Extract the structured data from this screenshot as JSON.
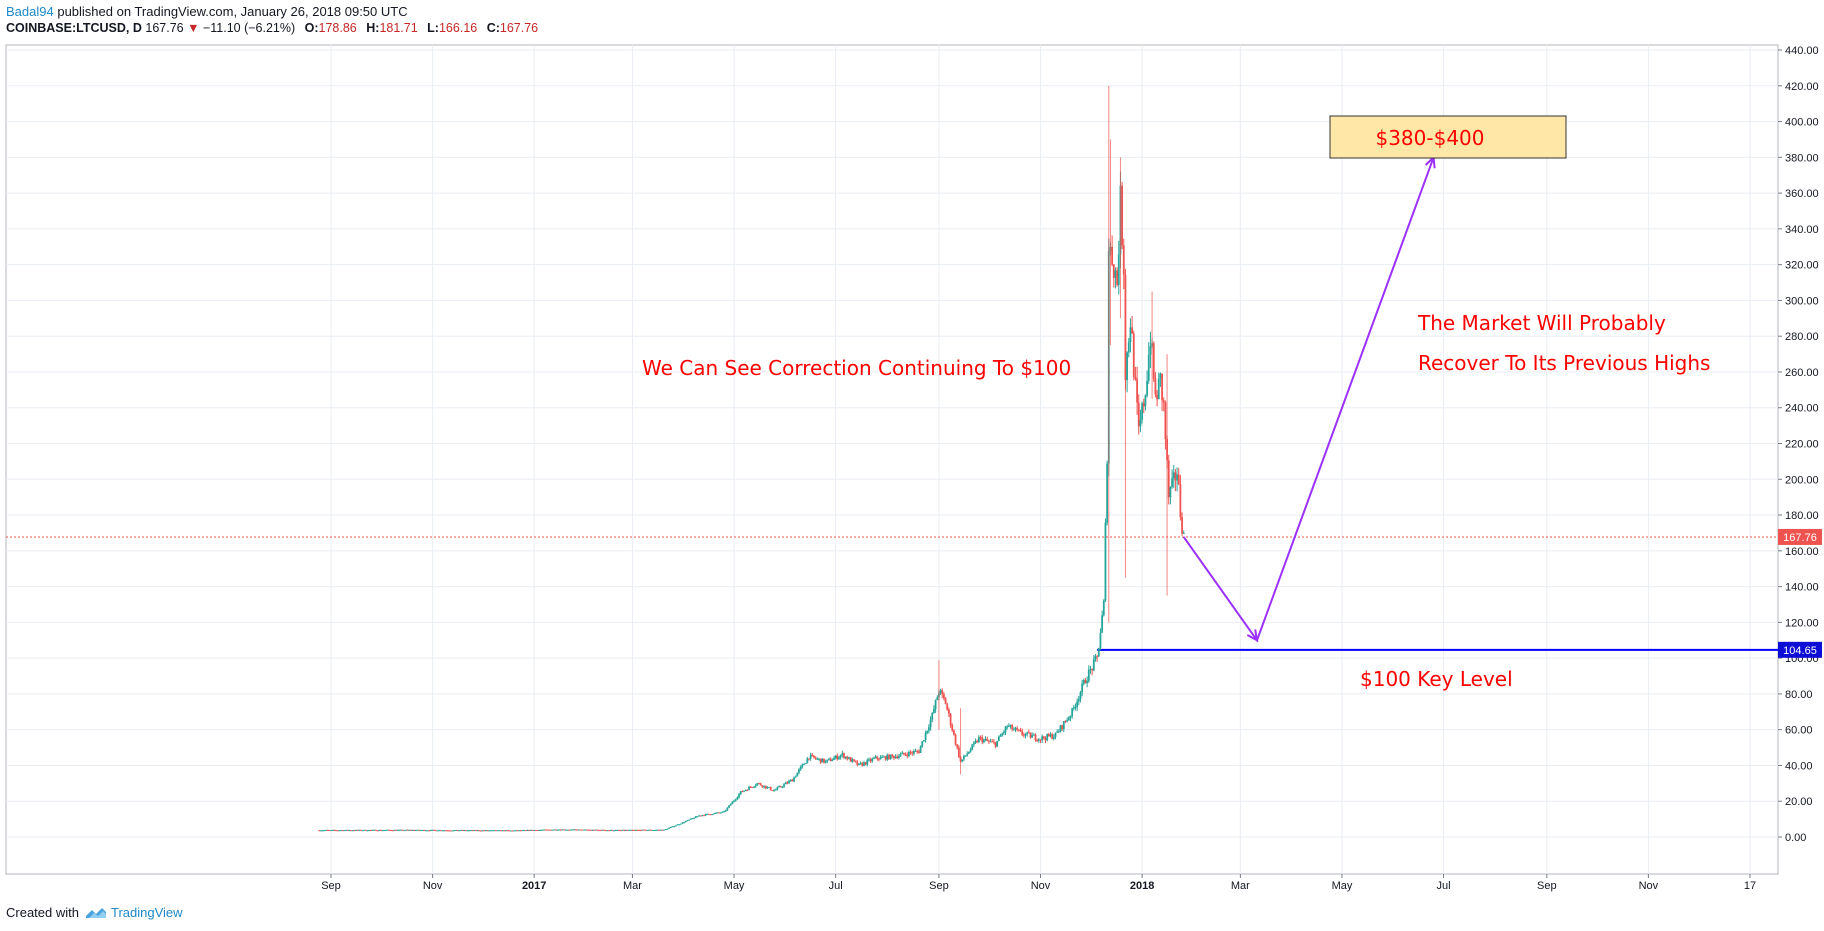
{
  "header": {
    "author": "Badal94",
    "published": "published on TradingView.com, January 26, 2018 09:50 UTC"
  },
  "symbol": {
    "name": "COINBASE:LTCUSD, D",
    "last": "167.76",
    "change": "−11.10 (−6.21%)",
    "open_label": "O:",
    "open": "178.86",
    "high_label": "H:",
    "high": "181.71",
    "low_label": "L:",
    "low": "166.16",
    "close_label": "C:",
    "close": "167.76"
  },
  "footer": {
    "created_with": "Created with",
    "brand": "TradingView"
  },
  "colors": {
    "up": "#26a69a",
    "down": "#ef5350",
    "grid": "#e9eef3",
    "key_level": "#0000ff",
    "arrow": "#9b30ff",
    "annotation": "#ff0000",
    "target_box": "#ffe7a8",
    "price_marker": "#ef5350"
  },
  "chart_data": {
    "type": "candlestick",
    "title": "",
    "ylim": [
      -20,
      440
    ],
    "y_ticks": [
      "440.00",
      "420.00",
      "400.00",
      "380.00",
      "360.00",
      "340.00",
      "320.00",
      "300.00",
      "280.00",
      "260.00",
      "240.00",
      "220.00",
      "200.00",
      "180.00",
      "160.00",
      "140.00",
      "120.00",
      "100.00",
      "80.00",
      "60.00",
      "40.00",
      "20.00",
      "0.00"
    ],
    "x_ticks": [
      {
        "date": "2016-09-01",
        "label": "Sep",
        "bold": false
      },
      {
        "date": "2016-11-01",
        "label": "Nov",
        "bold": false
      },
      {
        "date": "2017-01-01",
        "label": "2017",
        "bold": true
      },
      {
        "date": "2017-03-01",
        "label": "Mar",
        "bold": false
      },
      {
        "date": "2017-05-01",
        "label": "May",
        "bold": false
      },
      {
        "date": "2017-07-01",
        "label": "Jul",
        "bold": false
      },
      {
        "date": "2017-09-01",
        "label": "Sep",
        "bold": false
      },
      {
        "date": "2017-11-01",
        "label": "Nov",
        "bold": false
      },
      {
        "date": "2018-01-01",
        "label": "2018",
        "bold": true
      },
      {
        "date": "2018-03-01",
        "label": "Mar",
        "bold": false
      },
      {
        "date": "2018-05-01",
        "label": "May",
        "bold": false
      },
      {
        "date": "2018-07-01",
        "label": "Jul",
        "bold": false
      },
      {
        "date": "2018-09-01",
        "label": "Sep",
        "bold": false
      },
      {
        "date": "2018-11-01",
        "label": "Nov",
        "bold": false
      },
      {
        "date": "2019-01-01",
        "label": "17",
        "bold": false
      }
    ],
    "price_path": [
      [
        "2016-08-25",
        3.8
      ],
      [
        "2016-10-15",
        3.9
      ],
      [
        "2016-12-20",
        3.6
      ],
      [
        "2017-01-15",
        4.2
      ],
      [
        "2017-02-20",
        3.8
      ],
      [
        "2017-03-20",
        4.0
      ],
      [
        "2017-03-31",
        8
      ],
      [
        "2017-04-10",
        12
      ],
      [
        "2017-04-25",
        14
      ],
      [
        "2017-05-05",
        25
      ],
      [
        "2017-05-15",
        30
      ],
      [
        "2017-05-25",
        26
      ],
      [
        "2017-06-05",
        32
      ],
      [
        "2017-06-15",
        45
      ],
      [
        "2017-06-25",
        42
      ],
      [
        "2017-07-05",
        46
      ],
      [
        "2017-07-15",
        40
      ],
      [
        "2017-07-25",
        44
      ],
      [
        "2017-08-05",
        45
      ],
      [
        "2017-08-20",
        48
      ],
      [
        "2017-08-28",
        68
      ],
      [
        "2017-09-01",
        82
      ],
      [
        "2017-09-05",
        75
      ],
      [
        "2017-09-14",
        42
      ],
      [
        "2017-09-25",
        55
      ],
      [
        "2017-10-05",
        52
      ],
      [
        "2017-10-12",
        62
      ],
      [
        "2017-10-20",
        58
      ],
      [
        "2017-11-01",
        55
      ],
      [
        "2017-11-10",
        57
      ],
      [
        "2017-11-20",
        70
      ],
      [
        "2017-11-28",
        88
      ],
      [
        "2017-12-05",
        100
      ],
      [
        "2017-12-09",
        130
      ],
      [
        "2017-12-11",
        215
      ],
      [
        "2017-12-12",
        330
      ],
      [
        "2017-12-14",
        325
      ],
      [
        "2017-12-17",
        310
      ],
      [
        "2017-12-19",
        355
      ],
      [
        "2017-12-21",
        320
      ],
      [
        "2017-12-22",
        260
      ],
      [
        "2017-12-25",
        290
      ],
      [
        "2017-12-28",
        250
      ],
      [
        "2017-12-30",
        225
      ],
      [
        "2018-01-03",
        250
      ],
      [
        "2018-01-06",
        280
      ],
      [
        "2018-01-09",
        245
      ],
      [
        "2018-01-12",
        255
      ],
      [
        "2018-01-14",
        240
      ],
      [
        "2018-01-17",
        190
      ],
      [
        "2018-01-19",
        195
      ],
      [
        "2018-01-22",
        205
      ],
      [
        "2018-01-24",
        182
      ],
      [
        "2018-01-26",
        167.76
      ]
    ],
    "spikes": [
      [
        "2017-12-12",
        120,
        420
      ],
      [
        "2017-12-13",
        275,
        390
      ],
      [
        "2017-12-19",
        290,
        380
      ],
      [
        "2017-12-22",
        145,
        300
      ],
      [
        "2018-01-07",
        245,
        305
      ],
      [
        "2018-01-16",
        135,
        270
      ],
      [
        "2017-09-01",
        60,
        99
      ],
      [
        "2017-09-14",
        35,
        72
      ]
    ],
    "last_price": 167.76,
    "key_level": {
      "value": 104.65,
      "label": "104.65",
      "start": "2017-12-05"
    },
    "price_label": "167.76",
    "projection": [
      [
        "2018-01-26",
        167.76
      ],
      [
        "2018-03-11",
        110
      ],
      [
        "2018-06-25",
        380
      ]
    ],
    "annotations": {
      "correction": "We Can See Correction Continuing To $100",
      "recover_1": "The Market Will Probably",
      "recover_2": "Recover To Its Previous Highs",
      "key_level": "$100 Key Level",
      "target": "$380-$400"
    }
  }
}
